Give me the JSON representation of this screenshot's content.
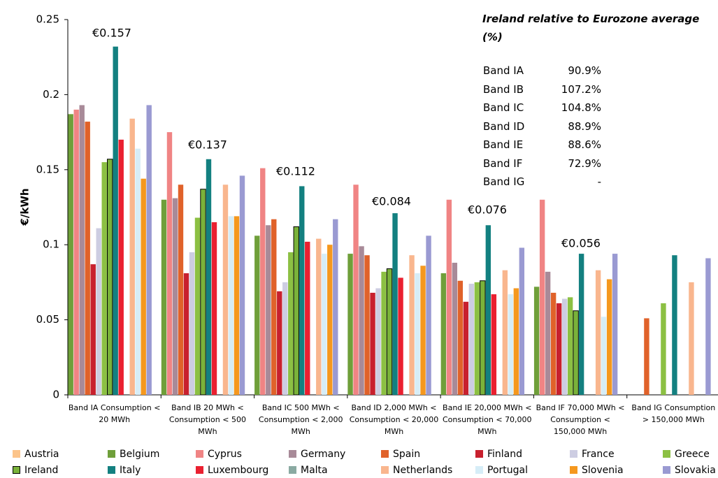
{
  "chart_data": {
    "type": "bar",
    "y_label": "€/kWh",
    "categories": [
      "Band IA Consumption < 20 MWh",
      "Band IB 20 MWh < Consumption < 500 MWh",
      "Band IC 500 MWh < Consumption < 2,000 MWh",
      "Band ID 2,000 MWh < Consumption < 20,000 MWh",
      "Band IE 20,000 MWh < Consumption < 70,000 MWh",
      "Band IF 70,000 MWh < Consumption < 150,000 MWh",
      "Band IG Consumption > 150,000 MWh"
    ],
    "ylim": [
      0,
      0.25
    ],
    "yticks": [
      0,
      0.05,
      0.1,
      0.15,
      0.2,
      0.25
    ],
    "grid": false,
    "series": [
      {
        "name": "Austria",
        "color": "#fcc48a",
        "values": [
          null,
          null,
          null,
          null,
          null,
          null,
          null
        ]
      },
      {
        "name": "Belgium",
        "color": "#6f9f3a",
        "values": [
          0.187,
          0.13,
          0.106,
          0.094,
          0.081,
          0.072,
          null
        ]
      },
      {
        "name": "Cyprus",
        "color": "#f08484",
        "values": [
          0.19,
          0.175,
          0.151,
          0.14,
          0.13,
          0.13,
          null
        ]
      },
      {
        "name": "Germany",
        "color": "#a88a98",
        "values": [
          0.193,
          0.131,
          0.113,
          0.099,
          0.088,
          0.082,
          null
        ]
      },
      {
        "name": "Spain",
        "color": "#e0622a",
        "values": [
          0.182,
          0.14,
          0.117,
          0.093,
          0.076,
          0.068,
          0.051
        ]
      },
      {
        "name": "Finland",
        "color": "#c8202e",
        "values": [
          0.087,
          0.081,
          0.069,
          0.068,
          0.062,
          0.061,
          null
        ]
      },
      {
        "name": "France",
        "color": "#cdcde2",
        "values": [
          0.111,
          0.095,
          0.075,
          0.071,
          0.074,
          0.064,
          null
        ]
      },
      {
        "name": "Greece",
        "color": "#8cc043",
        "values": [
          0.155,
          0.118,
          0.095,
          0.082,
          0.075,
          0.065,
          0.061
        ]
      },
      {
        "name": "Ireland",
        "color": "#7ab23a",
        "edgecolor": "#000000",
        "values": [
          0.157,
          0.137,
          0.112,
          0.084,
          0.076,
          0.056,
          null
        ]
      },
      {
        "name": "Italy",
        "color": "#138080",
        "values": [
          0.232,
          0.157,
          0.139,
          0.121,
          0.113,
          0.094,
          0.093
        ]
      },
      {
        "name": "Luxembourg",
        "color": "#ea2030",
        "values": [
          0.17,
          0.115,
          0.102,
          0.078,
          0.067,
          null,
          null
        ]
      },
      {
        "name": "Malta",
        "color": "#8aaaa2",
        "values": [
          null,
          null,
          null,
          null,
          null,
          null,
          null
        ]
      },
      {
        "name": "Netherlands",
        "color": "#f9b68e",
        "values": [
          0.184,
          0.14,
          0.104,
          0.093,
          0.083,
          0.083,
          0.075
        ]
      },
      {
        "name": "Portugal",
        "color": "#d6edf7",
        "values": [
          0.164,
          0.119,
          0.094,
          0.081,
          0.067,
          0.052,
          null
        ]
      },
      {
        "name": "Slovenia",
        "color": "#f5981e",
        "values": [
          0.144,
          0.119,
          0.1,
          0.086,
          0.071,
          0.077,
          null
        ]
      },
      {
        "name": "Slovakia",
        "color": "#9a9ad2",
        "values": [
          0.193,
          0.146,
          0.117,
          0.106,
          0.098,
          0.094,
          0.091
        ]
      }
    ],
    "annotations": [
      "€0.157",
      "€0.137",
      "€0.112",
      "€0.084",
      "€0.076",
      "€0.056"
    ]
  },
  "side_panel": {
    "title": "Ireland relative to Eurozone average (%)",
    "rows": [
      [
        "Band IA",
        "90.9%"
      ],
      [
        "Band IB",
        "107.2%"
      ],
      [
        "Band IC",
        "104.8%"
      ],
      [
        "Band ID",
        "88.9%"
      ],
      [
        "Band IE",
        "88.6%"
      ],
      [
        "Band IF",
        "72.9%"
      ],
      [
        "Band IG",
        "-"
      ]
    ]
  }
}
